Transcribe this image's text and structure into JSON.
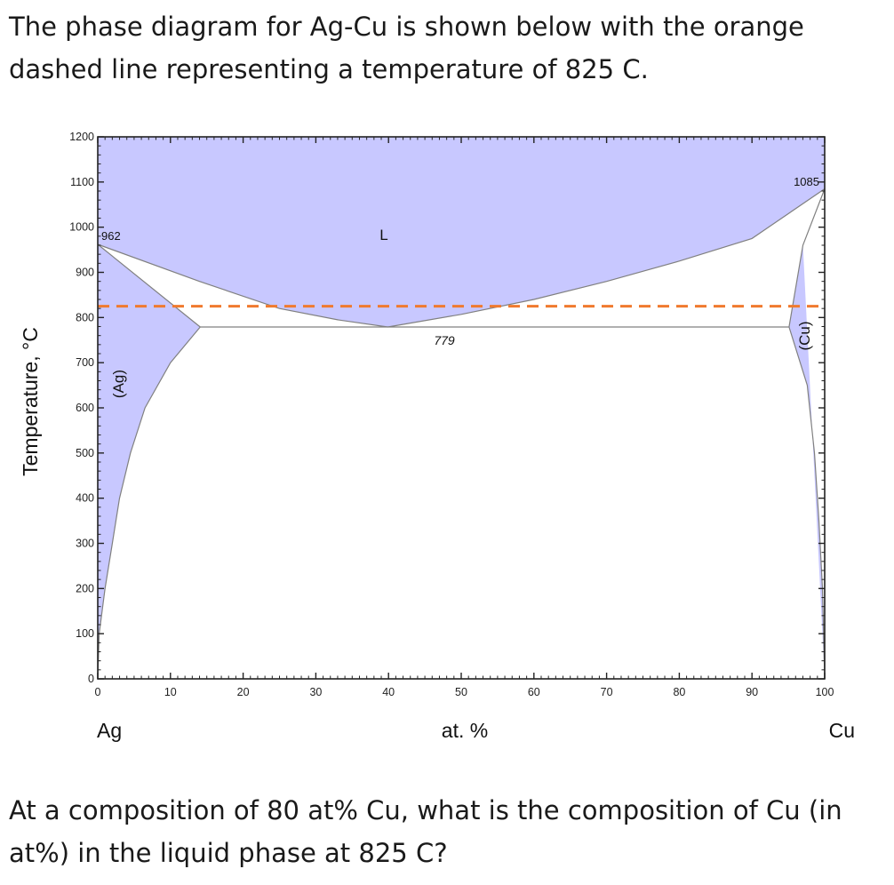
{
  "question": {
    "intro": "The phase diagram for Ag-Cu is shown below with the orange dashed line representing a temperature of 825 C.",
    "ask": "At a composition of 80 at% Cu, what is the composition of Cu (in at%) in the liquid phase at 825 C?"
  },
  "chart_data": {
    "type": "phase-diagram",
    "system": "Ag-Cu",
    "ylabel": "Temperature, °C",
    "xlabel": "at. %",
    "x_end_labels": {
      "left": "Ag",
      "right": "Cu"
    },
    "xlim": [
      0,
      100
    ],
    "ylim": [
      0,
      1200
    ],
    "xticks": [
      0,
      10,
      20,
      30,
      40,
      50,
      60,
      70,
      80,
      90,
      100
    ],
    "yticks": [
      0,
      100,
      200,
      300,
      400,
      500,
      600,
      700,
      800,
      900,
      1000,
      1100,
      1200
    ],
    "reference_line": {
      "temperature": 825,
      "color": "#f07a2e",
      "style": "dashed"
    },
    "phase_labels": {
      "liquid": "L",
      "ag_solid": "(Ag)",
      "cu_solid": "(Cu)"
    },
    "point_labels": {
      "ag_melting": "962",
      "cu_melting": "1085",
      "eutectic": "779"
    },
    "special_points": {
      "ag_melting": {
        "x": 0,
        "y": 962
      },
      "cu_melting": {
        "x": 100,
        "y": 1085
      },
      "eutectic": {
        "x": 39.9,
        "y": 779
      },
      "ag_max_solubility": {
        "x": 14.1,
        "y": 779
      },
      "cu_max_solubility": {
        "x": 95.1,
        "y": 779
      }
    },
    "boundaries": {
      "liquidus_ag": [
        [
          0,
          962
        ],
        [
          14,
          880
        ],
        [
          25,
          820
        ],
        [
          33,
          795
        ],
        [
          39.9,
          779
        ]
      ],
      "liquidus_cu": [
        [
          39.9,
          779
        ],
        [
          50,
          807
        ],
        [
          60,
          840
        ],
        [
          70,
          880
        ],
        [
          80,
          925
        ],
        [
          90,
          975
        ],
        [
          100,
          1085
        ]
      ],
      "solidus_ag": [
        [
          0,
          962
        ],
        [
          14.1,
          779
        ]
      ],
      "solidus_cu": [
        [
          95.1,
          779
        ],
        [
          97,
          960
        ],
        [
          100,
          1085
        ]
      ],
      "solvus_ag": [
        [
          14.1,
          779
        ],
        [
          10,
          700
        ],
        [
          6.5,
          600
        ],
        [
          4.5,
          500
        ],
        [
          3,
          400
        ],
        [
          2,
          300
        ],
        [
          1,
          200
        ],
        [
          0.2,
          100
        ],
        [
          0,
          0
        ]
      ],
      "solvus_cu": [
        [
          95.1,
          779
        ],
        [
          97.6,
          650
        ],
        [
          98.6,
          500
        ],
        [
          99.2,
          350
        ],
        [
          99.7,
          200
        ],
        [
          100,
          0
        ]
      ]
    },
    "colors": {
      "two_phase_shade": "#c8c8ff",
      "boundary": "#808080",
      "axis": "#222222"
    }
  }
}
